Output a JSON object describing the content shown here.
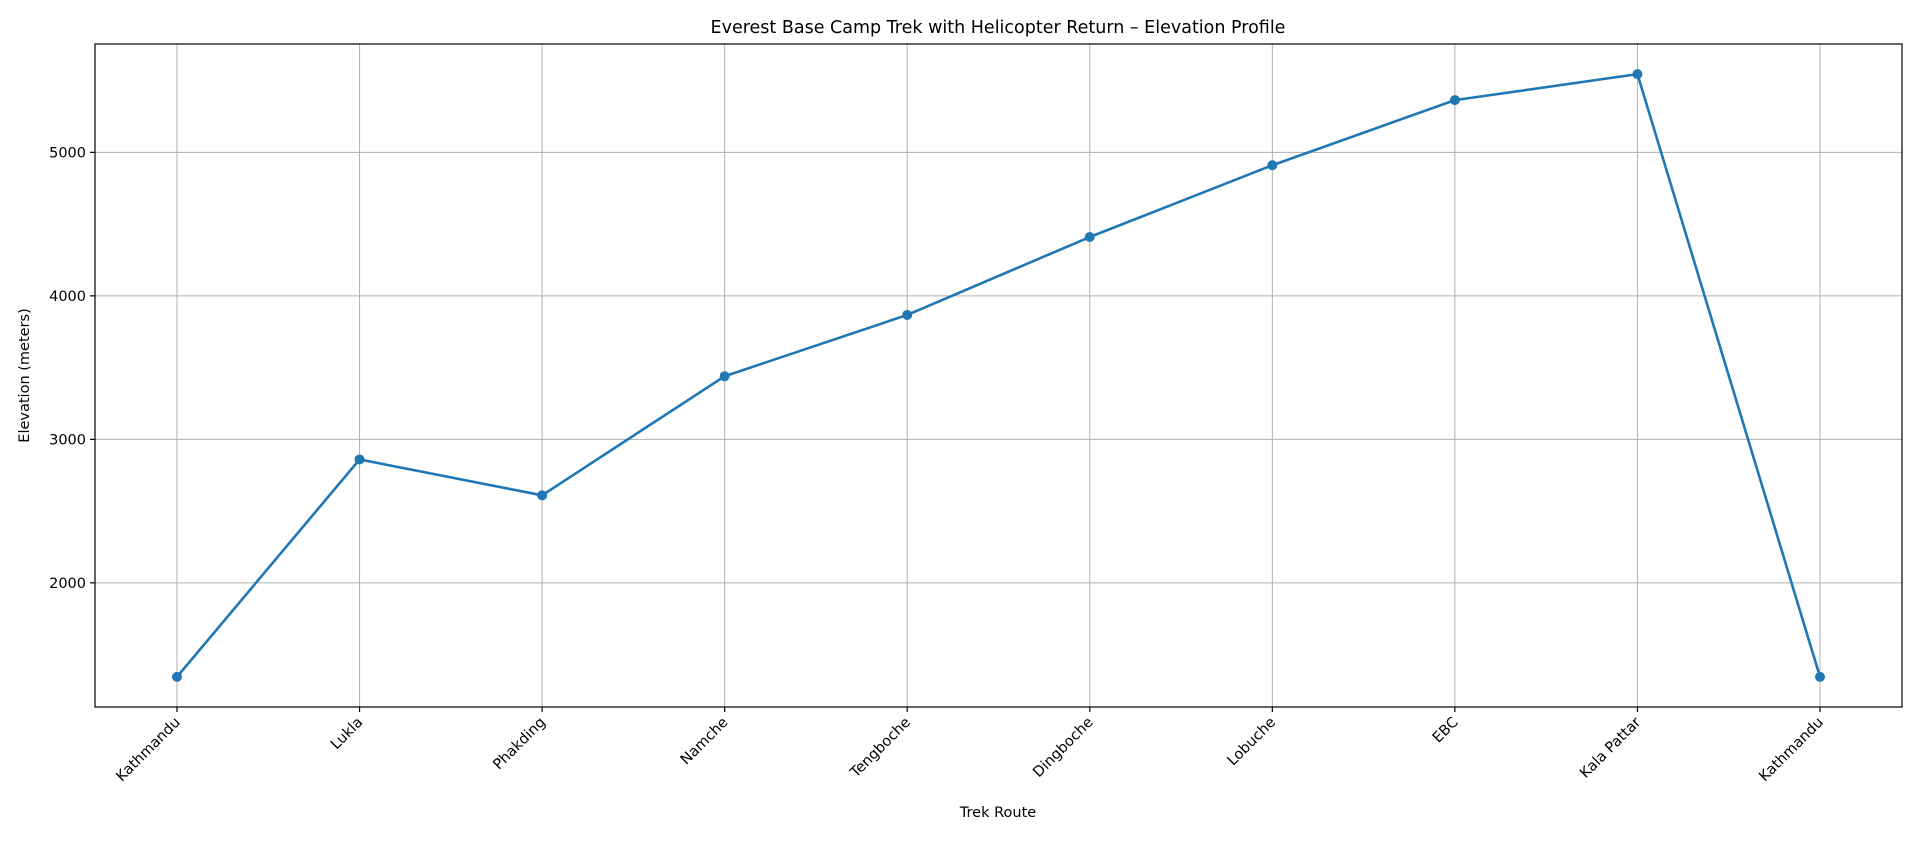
{
  "chart_data": {
    "type": "line",
    "title": "Everest Base Camp Trek with Helicopter Return – Elevation Profile",
    "xlabel": "Trek Route",
    "ylabel": "Elevation (meters)",
    "categories": [
      "Kathmandu",
      "Lukla",
      "Phakding",
      "Namche",
      "Tengboche",
      "Dingboche",
      "Lobuche",
      "EBC",
      "Kala Pattar",
      "Kathmandu"
    ],
    "series": [
      {
        "name": "Elevation",
        "values": [
          1345,
          2860,
          2610,
          3440,
          3867,
          4410,
          4910,
          5364,
          5545,
          1345
        ],
        "color": "#1f77b4",
        "marker": "circle"
      }
    ],
    "yticks": [
      2000,
      3000,
      4000,
      5000
    ],
    "ytick_labels": [
      "2000",
      "3000",
      "4000",
      "5000"
    ],
    "ylim": [
      1135,
      5755
    ],
    "xtick_rotation": -45,
    "grid": true,
    "legend": null
  },
  "colors": {
    "line": "#1f77b4",
    "grid": "#b0b0b0",
    "axes": "#000000",
    "background": "#ffffff"
  }
}
